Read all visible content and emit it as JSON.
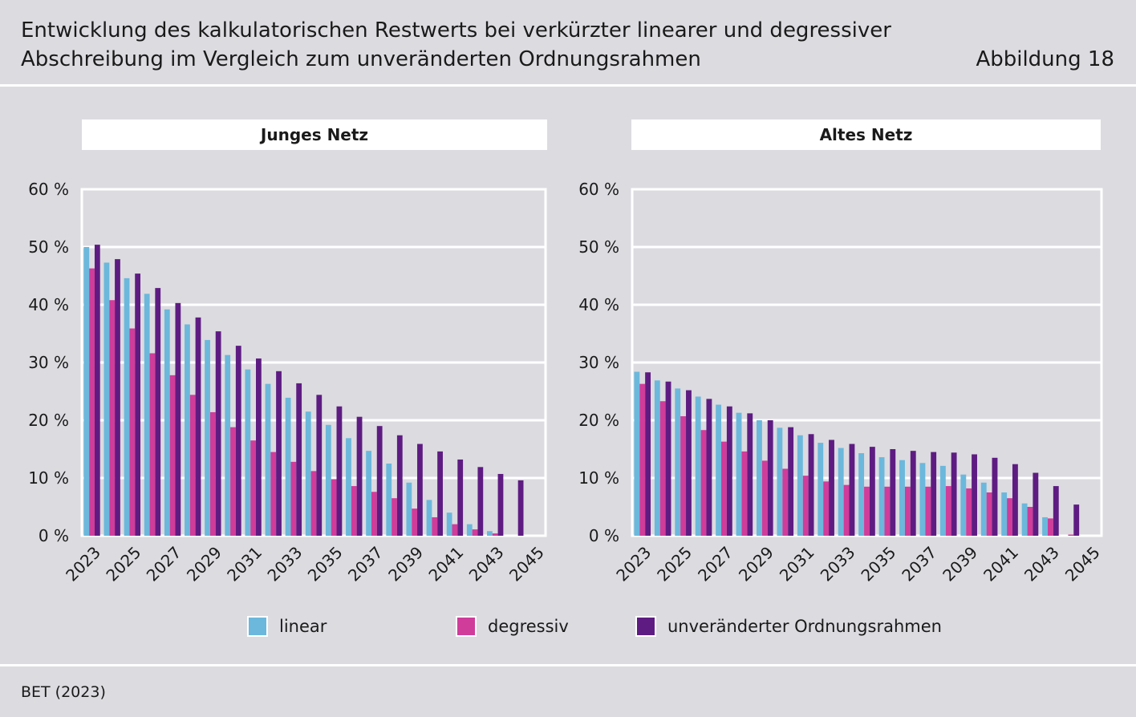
{
  "header": {
    "title_line1": "Entwicklung des kalkulatorischen Restwerts bei verkürzter linearer und degressiver",
    "title_line2": "Abschreibung im Vergleich zum unveränderten Ordnungsrahmen",
    "figure_label": "Abbildung 18"
  },
  "legend": {
    "linear": "linear",
    "degressiv": "degressiv",
    "unveraendert": "unveränderter Ordnungsrahmen"
  },
  "colors": {
    "linear": "#6bb8dc",
    "degressiv": "#d03c9a",
    "unveraendert": "#5e1c82",
    "grid": "#ffffff",
    "plot_bg": "#dcdbe0"
  },
  "source": "BET (2023)",
  "chart_data": [
    {
      "type": "bar",
      "title": "Junges Netz",
      "xlabel": "",
      "ylabel": "",
      "ylim": [
        0,
        60
      ],
      "yticks": [
        0,
        10,
        20,
        30,
        40,
        50,
        60
      ],
      "ytick_labels": [
        "0 %",
        "10 %",
        "20 %",
        "30 %",
        "40 %",
        "50 %",
        "60 %"
      ],
      "categories": [
        "2023",
        "2024",
        "2025",
        "2026",
        "2027",
        "2028",
        "2029",
        "2030",
        "2031",
        "2032",
        "2033",
        "2034",
        "2035",
        "2036",
        "2037",
        "2038",
        "2039",
        "2040",
        "2041",
        "2042",
        "2043",
        "2044",
        "2045"
      ],
      "xtick_labels": [
        "2023",
        "2025",
        "2027",
        "2029",
        "2031",
        "2033",
        "2035",
        "2037",
        "2039",
        "2041",
        "2043",
        "2045"
      ],
      "series": [
        {
          "name": "linear",
          "values": [
            50.0,
            47.3,
            44.6,
            41.9,
            39.2,
            36.6,
            33.9,
            31.3,
            28.8,
            26.3,
            23.9,
            21.5,
            19.2,
            16.9,
            14.7,
            12.5,
            9.2,
            6.2,
            4.0,
            2.0,
            0.8,
            0,
            0
          ]
        },
        {
          "name": "degressiv",
          "values": [
            46.3,
            40.8,
            35.9,
            31.6,
            27.8,
            24.4,
            21.4,
            18.8,
            16.5,
            14.5,
            12.8,
            11.2,
            9.8,
            8.6,
            7.6,
            6.5,
            4.7,
            3.2,
            2.0,
            1.1,
            0.4,
            0,
            0
          ]
        },
        {
          "name": "unveränderter Ordnungsrahmen",
          "values": [
            50.4,
            47.9,
            45.4,
            42.9,
            40.3,
            37.8,
            35.4,
            32.9,
            30.7,
            28.5,
            26.4,
            24.4,
            22.4,
            20.6,
            19.0,
            17.4,
            15.9,
            14.6,
            13.2,
            11.9,
            10.7,
            9.6,
            0
          ]
        }
      ]
    },
    {
      "type": "bar",
      "title": "Altes Netz",
      "xlabel": "",
      "ylabel": "",
      "ylim": [
        0,
        60
      ],
      "yticks": [
        0,
        10,
        20,
        30,
        40,
        50,
        60
      ],
      "ytick_labels": [
        "0 %",
        "10 %",
        "20 %",
        "30 %",
        "40 %",
        "50 %",
        "60 %"
      ],
      "categories": [
        "2023",
        "2024",
        "2025",
        "2026",
        "2027",
        "2028",
        "2029",
        "2030",
        "2031",
        "2032",
        "2033",
        "2034",
        "2035",
        "2036",
        "2037",
        "2038",
        "2039",
        "2040",
        "2041",
        "2042",
        "2043",
        "2044",
        "2045"
      ],
      "xtick_labels": [
        "2023",
        "2025",
        "2027",
        "2029",
        "2031",
        "2033",
        "2035",
        "2037",
        "2039",
        "2041",
        "2043",
        "2045"
      ],
      "series": [
        {
          "name": "linear",
          "values": [
            28.4,
            26.9,
            25.5,
            24.1,
            22.7,
            21.3,
            20.0,
            18.7,
            17.4,
            16.1,
            15.2,
            14.3,
            13.6,
            13.1,
            12.6,
            12.1,
            10.6,
            9.2,
            7.5,
            5.6,
            3.2,
            0,
            0
          ]
        },
        {
          "name": "degressiv",
          "values": [
            26.3,
            23.3,
            20.7,
            18.3,
            16.3,
            14.6,
            13.0,
            11.6,
            10.4,
            9.4,
            8.8,
            8.5,
            8.5,
            8.5,
            8.5,
            8.6,
            8.2,
            7.5,
            6.5,
            5.0,
            3.0,
            0.2,
            0
          ]
        },
        {
          "name": "unveränderter Ordnungsrahmen",
          "values": [
            28.3,
            26.7,
            25.2,
            23.7,
            22.4,
            21.2,
            20.0,
            18.8,
            17.6,
            16.6,
            15.9,
            15.4,
            15.0,
            14.7,
            14.5,
            14.4,
            14.1,
            13.5,
            12.4,
            10.9,
            8.6,
            5.4,
            0
          ]
        }
      ]
    }
  ]
}
